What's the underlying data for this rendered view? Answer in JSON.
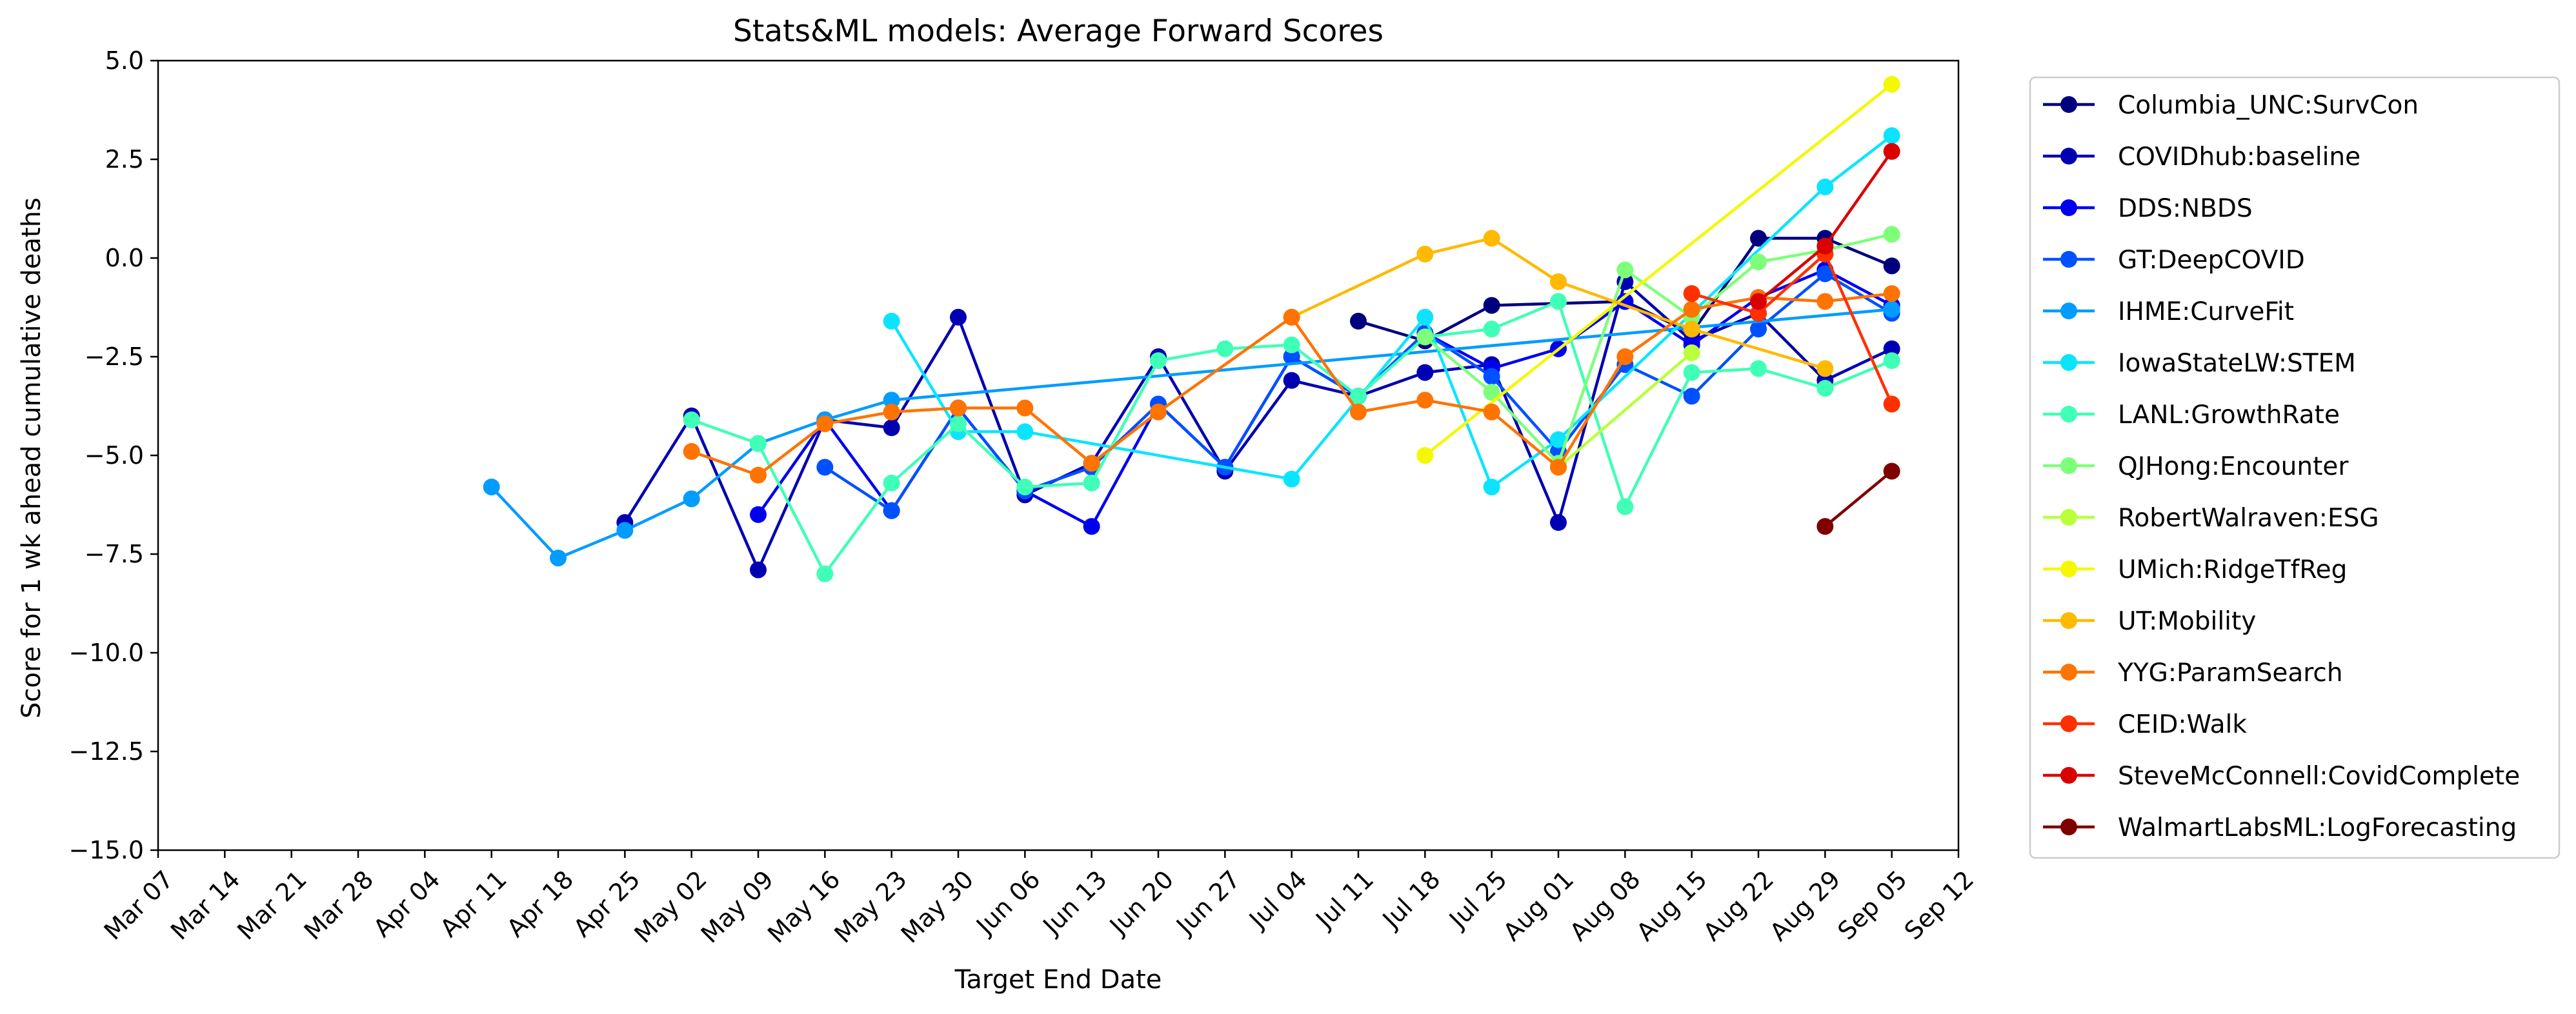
{
  "chart_data": {
    "type": "line",
    "title": "Stats&ML models: Average Forward Scores",
    "xlabel": "Target End Date",
    "ylabel": "Score for 1 wk ahead cumulative deaths",
    "ylim": [
      -15.0,
      5.0
    ],
    "yticks": [
      "5.0",
      "2.5",
      "0.0",
      "−2.5",
      "−5.0",
      "−7.5",
      "−10.0",
      "−12.5",
      "−15.0"
    ],
    "ytick_values": [
      5.0,
      2.5,
      0.0,
      -2.5,
      -5.0,
      -7.5,
      -10.0,
      -12.5,
      -15.0
    ],
    "categories": [
      "Mar 07",
      "Mar 14",
      "Mar 21",
      "Mar 28",
      "Apr 04",
      "Apr 11",
      "Apr 18",
      "Apr 25",
      "May 02",
      "May 09",
      "May 16",
      "May 23",
      "May 30",
      "Jun 06",
      "Jun 13",
      "Jun 20",
      "Jun 27",
      "Jul 04",
      "Jul 11",
      "Jul 18",
      "Jul 25",
      "Aug 01",
      "Aug 08",
      "Aug 15",
      "Aug 22",
      "Aug 29",
      "Sep 05",
      "Sep 12"
    ],
    "grid": false,
    "legend_position": "outside-right",
    "series": [
      {
        "name": "Columbia_UNC:SurvCon",
        "color": "#00007f",
        "x": [
          "Jul 11",
          "Jul 18",
          "Jul 25",
          "Aug 08",
          "Aug 15",
          "Aug 22",
          "Aug 29",
          "Sep 05"
        ],
        "y": [
          -1.6,
          -2.1,
          -1.2,
          -1.1,
          -1.9,
          0.5,
          0.5,
          -0.2
        ]
      },
      {
        "name": "COVIDhub:baseline",
        "color": "#0000b2",
        "x": [
          "Apr 25",
          "May 02",
          "May 09",
          "May 16",
          "May 23",
          "May 30",
          "Jun 06",
          "Jun 13",
          "Jun 20",
          "Jun 27",
          "Jul 04",
          "Jul 11",
          "Jul 18",
          "Jul 25",
          "Aug 01",
          "Aug 08",
          "Aug 15",
          "Aug 22",
          "Aug 29",
          "Sep 05"
        ],
        "y": [
          -6.7,
          -4.0,
          -7.9,
          -4.1,
          -4.3,
          -1.5,
          -6.0,
          -5.2,
          -2.5,
          -5.4,
          -3.1,
          -3.5,
          -2.9,
          -2.7,
          -6.7,
          -0.6,
          -2.1,
          -1.4,
          -3.1,
          -2.3
        ]
      },
      {
        "name": "DDS:NBDS",
        "color": "#0000f1",
        "x": [
          "May 09",
          "May 16",
          "May 23",
          "May 30",
          "Jun 06",
          "Jun 13",
          "Jun 20",
          "Jun 27",
          "Jul 04",
          "Jul 11",
          "Jul 18",
          "Jul 25",
          "Aug 01",
          "Aug 08",
          "Aug 15",
          "Aug 22",
          "Aug 29",
          "Sep 05"
        ],
        "y": [
          -6.5,
          -4.1,
          -6.4,
          -3.8,
          -5.9,
          -6.8,
          -3.7,
          -5.3,
          -2.5,
          -3.5,
          -1.9,
          -2.8,
          -2.3,
          -1.1,
          -2.2,
          -1.0,
          -0.3,
          -1.2
        ]
      },
      {
        "name": "GT:DeepCOVID",
        "color": "#0050ff",
        "x": [
          "May 16",
          "May 23",
          "May 30",
          "Jun 06",
          "Jun 13",
          "Jun 20",
          "Jun 27",
          "Jul 04",
          "Jul 11",
          "Jul 18",
          "Jul 25",
          "Aug 01",
          "Aug 08",
          "Aug 15",
          "Aug 22",
          "Aug 29",
          "Sep 05"
        ],
        "y": [
          -5.3,
          -6.4,
          -3.8,
          -5.9,
          -5.3,
          -3.7,
          -5.3,
          -2.5,
          -3.5,
          -1.9,
          -3.0,
          -4.9,
          -2.7,
          -3.5,
          -1.8,
          -0.4,
          -1.4
        ]
      },
      {
        "name": "IHME:CurveFit",
        "color": "#009cff",
        "x": [
          "Apr 11",
          "Apr 18",
          "Apr 25",
          "May 02",
          "May 09",
          "May 16",
          "May 23",
          "Sep 05"
        ],
        "y": [
          -5.8,
          -7.6,
          -6.9,
          -6.1,
          -4.7,
          -4.1,
          -3.6,
          -1.3
        ]
      },
      {
        "name": "IowaStateLW:STEM",
        "color": "#0ce4ff",
        "x": [
          "May 23",
          "May 30",
          "Jun 06",
          "Jul 04",
          "Jul 18",
          "Jul 25",
          "Aug 01",
          "Aug 29",
          "Sep 05"
        ],
        "y": [
          -1.6,
          -4.4,
          -4.4,
          -5.6,
          -1.5,
          -5.8,
          -4.6,
          1.8,
          3.1
        ]
      },
      {
        "name": "LANL:GrowthRate",
        "color": "#40ffb6",
        "x": [
          "May 02",
          "May 09",
          "May 16",
          "May 23",
          "May 30",
          "Jun 06",
          "Jun 13",
          "Jun 20",
          "Jun 27",
          "Jul 04",
          "Jul 11",
          "Jul 18",
          "Jul 25",
          "Aug 01",
          "Aug 08",
          "Aug 15",
          "Aug 22",
          "Aug 29",
          "Sep 05"
        ],
        "y": [
          -4.1,
          -4.7,
          -8.0,
          -5.7,
          -4.2,
          -5.8,
          -5.7,
          -2.6,
          -2.3,
          -2.2,
          -3.5,
          -2.0,
          -1.8,
          -1.1,
          -6.3,
          -2.9,
          -2.8,
          -3.3,
          -2.6
        ]
      },
      {
        "name": "QJHong:Encounter",
        "color": "#7dff7a",
        "x": [
          "Jul 18",
          "Jul 25",
          "Aug 01",
          "Aug 08",
          "Aug 15",
          "Aug 22",
          "Aug 29",
          "Sep 05"
        ],
        "y": [
          -2.0,
          -3.4,
          -5.2,
          -0.3,
          -1.5,
          -0.1,
          0.2,
          0.6
        ]
      },
      {
        "name": "RobertWalraven:ESG",
        "color": "#b9ff3c",
        "x": [
          "Aug 01",
          "Aug 15"
        ],
        "y": [
          -5.3,
          -2.4
        ]
      },
      {
        "name": "UMich:RidgeTfReg",
        "color": "#f4f802",
        "x": [
          "Jul 18",
          "Sep 05"
        ],
        "y": [
          -5.0,
          4.4
        ]
      },
      {
        "name": "UT:Mobility",
        "color": "#ffb900",
        "x": [
          "Jul 04",
          "Jul 18",
          "Jul 25",
          "Aug 01",
          "Aug 15",
          "Aug 29"
        ],
        "y": [
          -1.5,
          0.1,
          0.5,
          -0.6,
          -1.8,
          -2.8
        ]
      },
      {
        "name": "YYG:ParamSearch",
        "color": "#ff7300",
        "x": [
          "May 02",
          "May 09",
          "May 16",
          "May 23",
          "May 30",
          "Jun 06",
          "Jun 13",
          "Jun 20",
          "Jul 04",
          "Jul 11",
          "Jul 18",
          "Jul 25",
          "Aug 01",
          "Aug 08",
          "Aug 15",
          "Aug 22",
          "Aug 29",
          "Sep 05"
        ],
        "y": [
          -4.9,
          -5.5,
          -4.2,
          -3.9,
          -3.8,
          -3.8,
          -5.2,
          -3.9,
          -1.5,
          -3.9,
          -3.6,
          -3.9,
          -5.3,
          -2.5,
          -1.3,
          -1.0,
          -1.1,
          -0.9
        ]
      },
      {
        "name": "CEID:Walk",
        "color": "#ff3000",
        "x": [
          "Aug 15",
          "Aug 22",
          "Aug 29",
          "Sep 05"
        ],
        "y": [
          -0.9,
          -1.4,
          0.1,
          -3.7
        ]
      },
      {
        "name": "SteveMcConnell:CovidComplete",
        "color": "#da0000",
        "x": [
          "Aug 22",
          "Aug 29",
          "Sep 05"
        ],
        "y": [
          -1.1,
          0.3,
          2.7
        ]
      },
      {
        "name": "WalmartLabsML:LogForecasting",
        "color": "#7f0000",
        "x": [
          "Aug 29",
          "Sep 05"
        ],
        "y": [
          -6.8,
          -5.4
        ]
      }
    ]
  }
}
